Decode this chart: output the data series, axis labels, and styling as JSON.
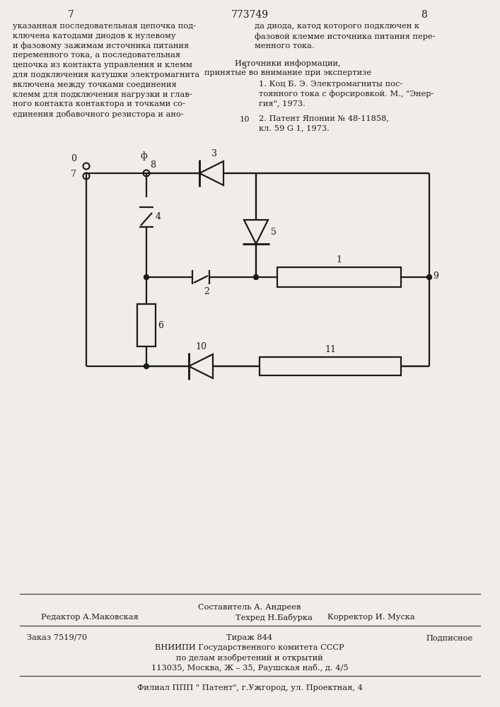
{
  "page_numbers": [
    "7",
    "8"
  ],
  "patent_number": "773749",
  "left_text_lines": [
    "указанная последовательная цепочка под-",
    "ключена катодами диодов к нулевому",
    "и фазовому зажимам источника питания",
    "переменного тока, а последовательная",
    "цепочка из контакта управления и клемм",
    "для подключения катушки электромагнита",
    "включена между точками соединения",
    "клемм для подключения нагрузки и глав-",
    "ного контакта контактора и точками со-",
    "единения добавочного резистора и ано-"
  ],
  "right_text_lines": [
    "да диода, катод которого подключен к",
    "фазовой клемме источника питания пере-",
    "менного тока."
  ],
  "line_num_5": "5",
  "line_num_10": "10",
  "sources_header": "Источники информации,",
  "sources_subheader": "принятые во внимание при экспертизе",
  "src1_lines": [
    "1. Коц Б. Э. Электромагниты пос-",
    "тоянного тока с форсировкой. М., \"Энер-",
    "гия\", 1973."
  ],
  "src2_lines": [
    "2. Патент Японии № 48-11858,",
    "кл. 59 G 1, 1973."
  ],
  "footer_line1": "Составитель А. Андреев",
  "footer_line2_left": "Редактор А.Маковская",
  "footer_line2_mid": "Техред Н.Бабурка",
  "footer_line2_right": "Корректор И. Муска",
  "footer_order": "Заказ 7519/70",
  "footer_tirazh": "Тираж 844",
  "footer_podpisnoe": "Подписное",
  "footer_vniip": "ВНИИПИ Государственного комитета СССР",
  "footer_dela": "по делам изобретений и открытий",
  "footer_addr": "113035, Москва, Ж – 35, Раушская наб., д. 4/5",
  "footer_filial": "Филиал ППП \" Патент\", г.Ужгород, ул. Проектная, 4",
  "bg": "#f0ede8",
  "fg": "#1a1a1a",
  "clw": 1.6
}
